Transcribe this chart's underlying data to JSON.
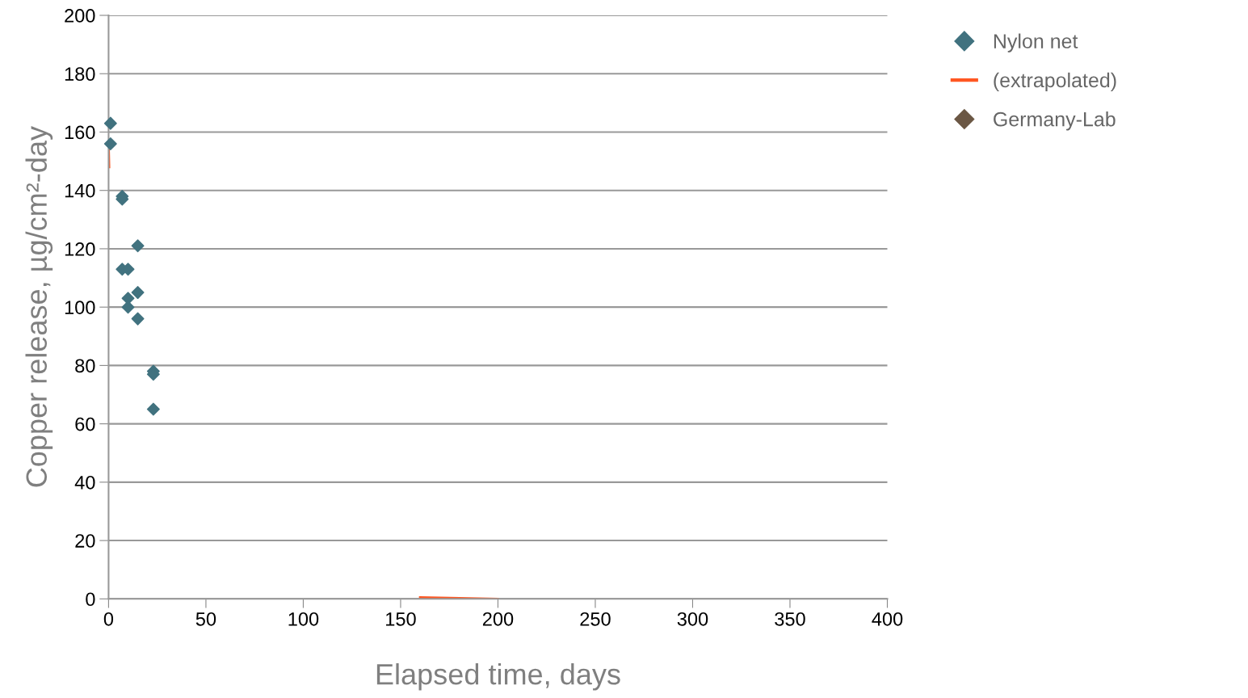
{
  "chart_data": {
    "type": "scatter",
    "xlabel": "Elapsed time, days",
    "ylabel": "Copper release, µg/cm²-day",
    "xlim": [
      0,
      400
    ],
    "ylim": [
      0,
      200
    ],
    "xticks": [
      0,
      50,
      100,
      150,
      200,
      250,
      300,
      350,
      400
    ],
    "yticks": [
      0,
      20,
      40,
      60,
      80,
      100,
      120,
      140,
      160,
      180,
      200
    ],
    "grid": "y",
    "legend": "top right",
    "series": [
      {
        "name": "Nylon net",
        "marker": "diamond",
        "color": "#41727f",
        "x": [
          1,
          1,
          7,
          7,
          7,
          10,
          10,
          10,
          15,
          15,
          15,
          23,
          23,
          23
        ],
        "values": [
          163,
          156,
          138,
          137,
          113,
          113,
          103,
          100,
          121,
          105,
          96,
          78,
          77,
          65
        ]
      },
      {
        "name": "(extrapolated)",
        "type": "line",
        "color": "#ff5722",
        "x": [
          0,
          0.3,
          null,
          160,
          200
        ],
        "values": [
          157,
          148,
          null,
          0.5,
          0
        ]
      },
      {
        "name": "Germany-Lab",
        "marker": "diamond",
        "color": "#6b5744"
      }
    ]
  }
}
